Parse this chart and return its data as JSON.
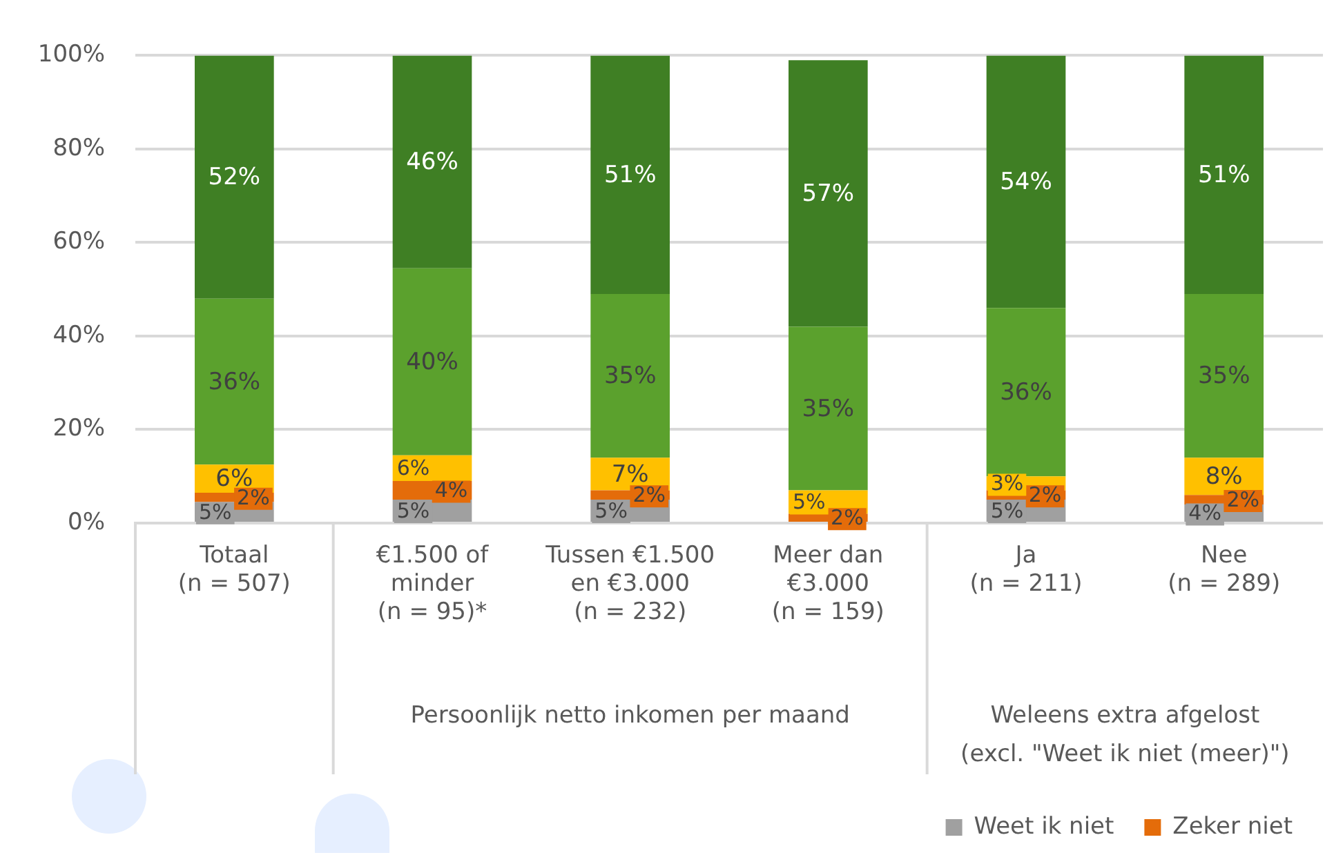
{
  "chart_data": {
    "type": "bar",
    "stacked": true,
    "categories": [
      "Totaal\n(n = 507)",
      "€1.500 of\nminder\n(n = 95)*",
      "Tussen €1.500\nen €3.000\n(n = 232)",
      "Meer dan\n€3.000\n(n = 159)",
      "Ja\n(n = 211)",
      "Nee\n(n = 289)"
    ],
    "series": [
      {
        "name": "Weet ik niet",
        "color": "#a0a0a0",
        "values": [
          4.5,
          5,
          5,
          0,
          5,
          4
        ],
        "value_labels": [
          "5%",
          "5%",
          "5%",
          null,
          "5%",
          "4%"
        ]
      },
      {
        "name": "Zeker niet",
        "color": "#e46c0a",
        "values": [
          2,
          4,
          2,
          2,
          2,
          2
        ],
        "value_labels": [
          "2%",
          "4%",
          "2%",
          "2%",
          "2%",
          "2%"
        ]
      },
      {
        "color": "#ffc000",
        "values": [
          6,
          5.5,
          7,
          5,
          3,
          8
        ],
        "value_labels": [
          "6%",
          "6%",
          "7%",
          "5%",
          "3%",
          "8%"
        ]
      },
      {
        "color": "#5ba12d",
        "values": [
          35.5,
          40,
          35,
          35,
          36,
          35
        ],
        "value_labels": [
          "36%",
          "40%",
          "35%",
          "35%",
          "36%",
          "35%"
        ]
      },
      {
        "color": "#3f7f24",
        "values": [
          52,
          45.5,
          51,
          57,
          54,
          51
        ],
        "value_labels": [
          "52%",
          "46%",
          "51%",
          "57%",
          "54%",
          "51%"
        ]
      }
    ],
    "ylim": [
      0,
      100
    ],
    "yticks": [
      {
        "value": 0,
        "label": "0%"
      },
      {
        "value": 20,
        "label": "20%"
      },
      {
        "value": 40,
        "label": "40%"
      },
      {
        "value": 60,
        "label": "60%"
      },
      {
        "value": 80,
        "label": "80%"
      },
      {
        "value": 100,
        "label": "100%"
      }
    ],
    "grid": "y",
    "legend": "bottom right",
    "annotations": [
      "Persoonlijk netto inkomen per maand",
      "Weleens extra afgelost\n(excl. \"Weet ik niet (meer)\")"
    ]
  }
}
